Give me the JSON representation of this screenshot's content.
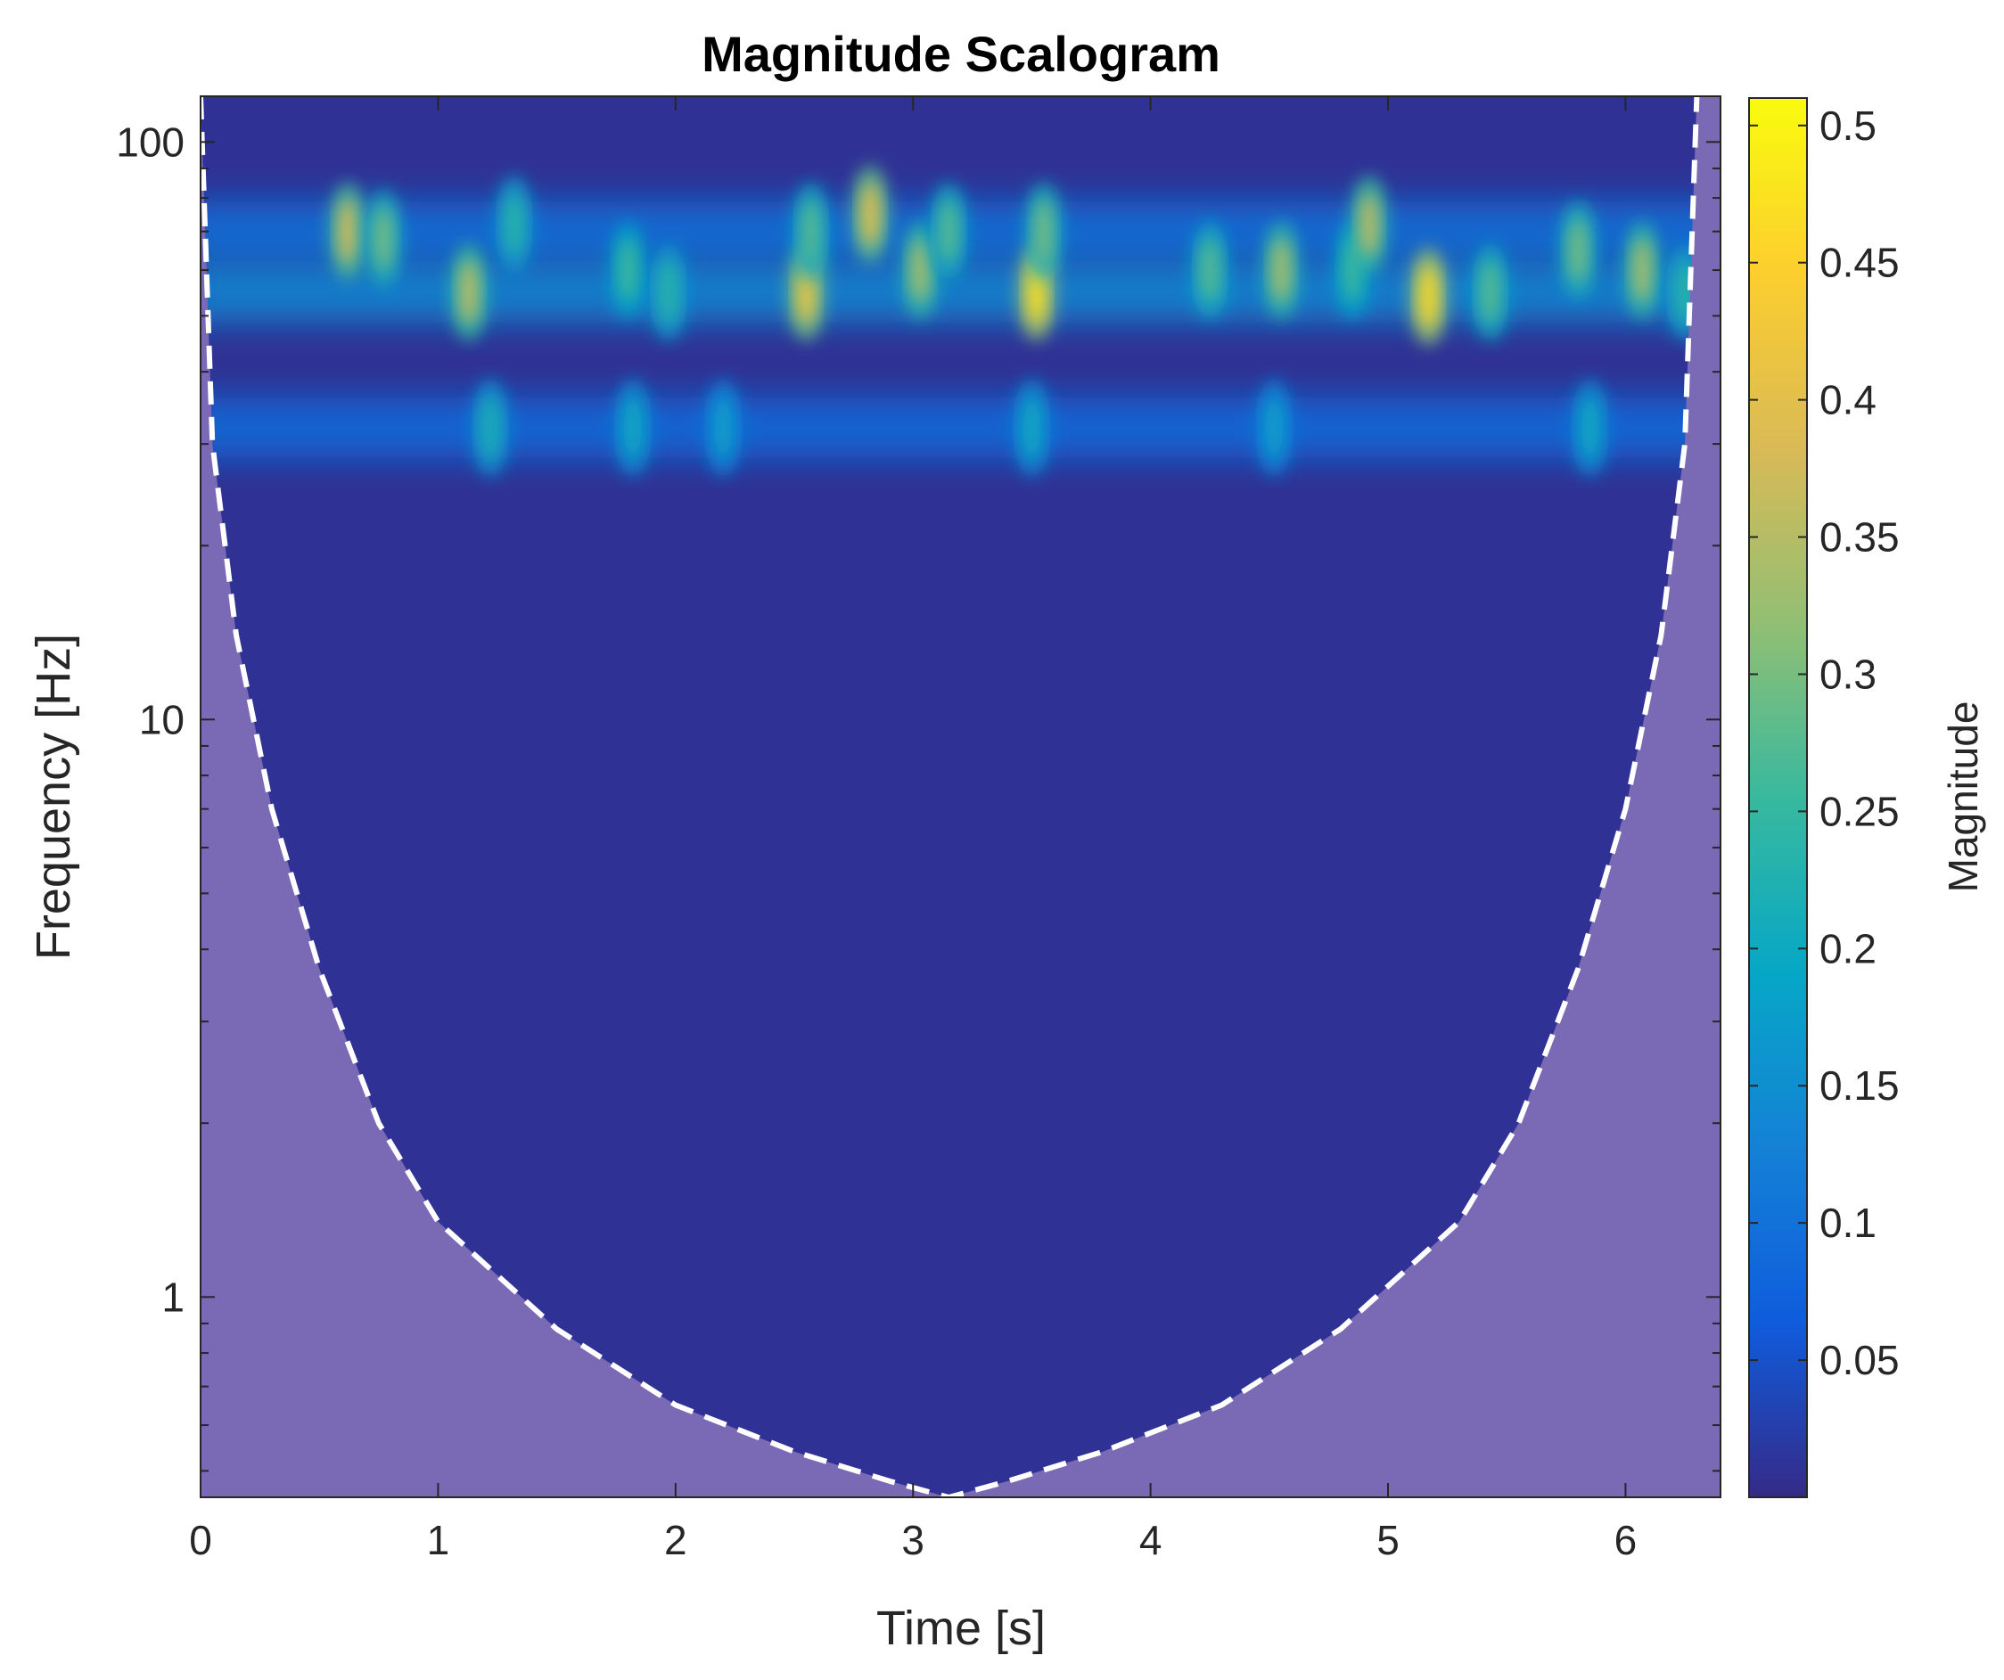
{
  "chart_data": {
    "type": "heatmap",
    "title": "Magnitude Scalogram",
    "xlabel": "Time [s]",
    "ylabel": "Frequency [Hz]",
    "xlim": [
      0,
      6.4
    ],
    "ylim": [
      0.45,
      120
    ],
    "yscale": "log",
    "xticks": [
      0,
      1,
      2,
      3,
      4,
      5,
      6
    ],
    "xtick_labels": [
      "0",
      "1",
      "2",
      "3",
      "4",
      "5",
      "6"
    ],
    "yticks": [
      1,
      10,
      100
    ],
    "ytick_labels": [
      "1",
      "10",
      "100"
    ],
    "colorbar": {
      "label": "Magnitude",
      "range": [
        0,
        0.51
      ],
      "ticks": [
        0.05,
        0.1,
        0.15,
        0.2,
        0.25,
        0.3,
        0.35,
        0.4,
        0.45,
        0.5
      ],
      "tick_labels": [
        "0.05",
        "0.1",
        "0.15",
        "0.2",
        "0.25",
        "0.3",
        "0.35",
        "0.4",
        "0.45",
        "0.5"
      ],
      "colormap": "parula",
      "colormap_stops": [
        "#352a87",
        "#0f5cdd",
        "#1481d6",
        "#06a7c6",
        "#38b99e",
        "#92bf73",
        "#d9ba56",
        "#fcce2e",
        "#f9fb0e"
      ]
    },
    "background_magnitude": 0.01,
    "bands": [
      {
        "name": "upper band",
        "freq_hz": 70,
        "base_magnitude": 0.1
      },
      {
        "name": "main band",
        "freq_hz": 55,
        "base_magnitude": 0.14
      },
      {
        "name": "lower band",
        "freq_hz": 32,
        "base_magnitude": 0.09
      }
    ],
    "hotspots": [
      {
        "time_s": 0.62,
        "freq_hz": 70,
        "magnitude": 0.38
      },
      {
        "time_s": 0.77,
        "freq_hz": 68,
        "magnitude": 0.3
      },
      {
        "time_s": 1.13,
        "freq_hz": 55,
        "magnitude": 0.36
      },
      {
        "time_s": 1.22,
        "freq_hz": 32,
        "magnitude": 0.22
      },
      {
        "time_s": 1.32,
        "freq_hz": 72,
        "magnitude": 0.24
      },
      {
        "time_s": 1.8,
        "freq_hz": 60,
        "magnitude": 0.26
      },
      {
        "time_s": 1.82,
        "freq_hz": 32,
        "magnitude": 0.2
      },
      {
        "time_s": 1.97,
        "freq_hz": 55,
        "magnitude": 0.24
      },
      {
        "time_s": 2.2,
        "freq_hz": 32,
        "magnitude": 0.18
      },
      {
        "time_s": 2.55,
        "freq_hz": 55,
        "magnitude": 0.42
      },
      {
        "time_s": 2.57,
        "freq_hz": 70,
        "magnitude": 0.28
      },
      {
        "time_s": 2.82,
        "freq_hz": 75,
        "magnitude": 0.4
      },
      {
        "time_s": 3.03,
        "freq_hz": 60,
        "magnitude": 0.34
      },
      {
        "time_s": 3.15,
        "freq_hz": 70,
        "magnitude": 0.28
      },
      {
        "time_s": 3.52,
        "freq_hz": 55,
        "magnitude": 0.47
      },
      {
        "time_s": 3.5,
        "freq_hz": 32,
        "magnitude": 0.2
      },
      {
        "time_s": 3.55,
        "freq_hz": 70,
        "magnitude": 0.3
      },
      {
        "time_s": 4.25,
        "freq_hz": 60,
        "magnitude": 0.28
      },
      {
        "time_s": 4.55,
        "freq_hz": 60,
        "magnitude": 0.34
      },
      {
        "time_s": 4.52,
        "freq_hz": 32,
        "magnitude": 0.18
      },
      {
        "time_s": 4.85,
        "freq_hz": 60,
        "magnitude": 0.26
      },
      {
        "time_s": 4.92,
        "freq_hz": 72,
        "magnitude": 0.36
      },
      {
        "time_s": 5.17,
        "freq_hz": 54,
        "magnitude": 0.46
      },
      {
        "time_s": 5.43,
        "freq_hz": 55,
        "magnitude": 0.28
      },
      {
        "time_s": 5.8,
        "freq_hz": 65,
        "magnitude": 0.3
      },
      {
        "time_s": 5.85,
        "freq_hz": 32,
        "magnitude": 0.2
      },
      {
        "time_s": 6.07,
        "freq_hz": 60,
        "magnitude": 0.34
      },
      {
        "time_s": 6.25,
        "freq_hz": 55,
        "magnitude": 0.24
      }
    ],
    "cone_of_influence": {
      "style": "white dashed",
      "shading": "#7a6ab5",
      "points": [
        {
          "time_s": 0.0,
          "freq_hz": 120
        },
        {
          "time_s": 0.05,
          "freq_hz": 30
        },
        {
          "time_s": 0.15,
          "freq_hz": 14
        },
        {
          "time_s": 0.3,
          "freq_hz": 7
        },
        {
          "time_s": 0.5,
          "freq_hz": 3.7
        },
        {
          "time_s": 0.75,
          "freq_hz": 2.0
        },
        {
          "time_s": 1.0,
          "freq_hz": 1.35
        },
        {
          "time_s": 1.5,
          "freq_hz": 0.88
        },
        {
          "time_s": 2.0,
          "freq_hz": 0.65
        },
        {
          "time_s": 2.5,
          "freq_hz": 0.54
        },
        {
          "time_s": 2.9,
          "freq_hz": 0.48
        },
        {
          "time_s": 3.15,
          "freq_hz": 0.45
        },
        {
          "time_s": 3.4,
          "freq_hz": 0.48
        },
        {
          "time_s": 3.8,
          "freq_hz": 0.54
        },
        {
          "time_s": 4.3,
          "freq_hz": 0.65
        },
        {
          "time_s": 4.8,
          "freq_hz": 0.88
        },
        {
          "time_s": 5.3,
          "freq_hz": 1.35
        },
        {
          "time_s": 5.55,
          "freq_hz": 2.0
        },
        {
          "time_s": 5.8,
          "freq_hz": 3.7
        },
        {
          "time_s": 6.0,
          "freq_hz": 7
        },
        {
          "time_s": 6.15,
          "freq_hz": 14
        },
        {
          "time_s": 6.25,
          "freq_hz": 30
        },
        {
          "time_s": 6.3,
          "freq_hz": 120
        }
      ]
    }
  }
}
